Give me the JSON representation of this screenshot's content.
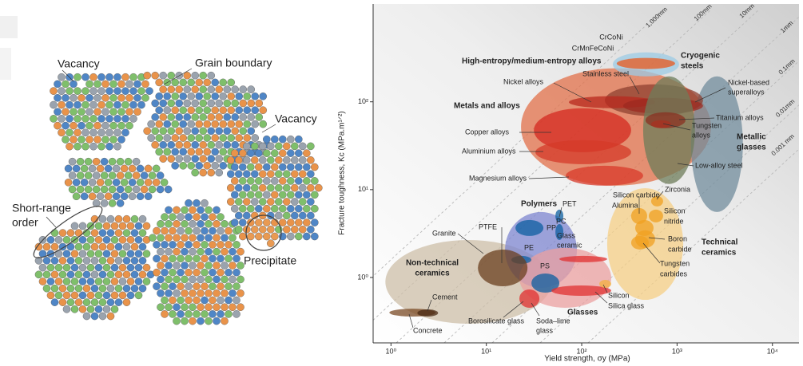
{
  "diagram": {
    "labels": {
      "vacancy_top": "Vacancy",
      "grain_boundary": "Grain boundary",
      "vacancy_right": "Vacancy",
      "short_range_order": [
        "Short-range",
        "order"
      ],
      "precipitate": "Precipitate"
    }
  },
  "chart_data": {
    "type": "ashby",
    "x_label": "Yield strength, σy (MPa)",
    "y_label": "Fracture toughness, Kc (MPa.m¹ᐟ²)",
    "xscale": "log",
    "yscale": "log",
    "xlim": [
      0.65,
      19000
    ],
    "ylim": [
      0.18,
      1300
    ],
    "xticks": [
      {
        "value": 1,
        "label": "10⁰"
      },
      {
        "value": 10,
        "label": "10¹"
      },
      {
        "value": 100,
        "label": "10²"
      },
      {
        "value": 1000,
        "label": "10³"
      },
      {
        "value": 10000,
        "label": "10⁴"
      }
    ],
    "yticks": [
      {
        "value": 1,
        "label": "10⁰"
      },
      {
        "value": 10,
        "label": "10¹"
      },
      {
        "value": 100,
        "label": "10²"
      }
    ],
    "guide_lines": [
      "1,000mm",
      "100mm",
      "10mm",
      "1mm",
      "0.1mm",
      "0.01mm",
      "0.001 mm"
    ],
    "regions": [
      {
        "name": [
          "Non-technical",
          "ceramics"
        ],
        "x": [
          0.874,
          48.1
        ],
        "y": [
          0.297,
          2.67
        ],
        "color": "#cdbfa8"
      },
      {
        "name": [
          "Technical",
          "ceramics"
        ],
        "x": [
          185,
          1160
        ],
        "y": [
          0.556,
          10.4
        ],
        "color": "#f6cf86"
      },
      {
        "name": "Polymers",
        "x": [
          15.7,
          89.1
        ],
        "y": [
          0.762,
          5.56
        ],
        "color": "#7d86d0"
      },
      {
        "name": "Glasses",
        "x": [
          22.2,
          204
        ],
        "y": [
          0.452,
          2.17
        ],
        "color": "#eba0a0"
      },
      {
        "name": "Metals and alloys",
        "x": [
          23.1,
          2270
        ],
        "y": [
          11.1,
          241
        ],
        "color": "#e2704a"
      },
      {
        "name": [
          "Metallic",
          "glasses"
        ],
        "x": [
          1400,
          4900
        ],
        "y": [
          5.56,
          195
        ],
        "color": "#728c9c"
      },
      {
        "name": [
          "Cryogenic",
          "steels"
        ],
        "x": [
          212,
          1050
        ],
        "y": [
          195,
          366
        ],
        "color": "#9ccbe4"
      },
      {
        "name": "High-entropy/medium-entropy alloys",
        "x": [
          233,
          953
        ],
        "y": [
          236,
          316
        ],
        "color": "#e8581e"
      },
      {
        "name": "Stainless steel",
        "x": [
          175,
          1870
        ],
        "y": [
          68.6,
          158
        ],
        "color": "#8f4030"
      },
      {
        "name": "Nickel alloys",
        "x": [
          73.5,
          589
        ],
        "y": [
          84.6,
          116
        ],
        "color": "#b8281e"
      },
      {
        "name": [
          "Nickel-based",
          "superalloys"
        ],
        "x": [
          272,
          1870
        ],
        "y": [
          73.1,
          111
        ],
        "color": "#9c2a20"
      },
      {
        "name": "Copper alloys",
        "x": [
          31.5,
          330
        ],
        "y": [
          26.7,
          84.6
        ],
        "color": "#d42a20"
      },
      {
        "name": "Aluminium alloys",
        "x": [
          32.7,
          330
        ],
        "y": [
          19.5,
          36.6
        ],
        "color": "#d43a28"
      },
      {
        "name": "Magnesium alloys",
        "x": [
          68,
          441
        ],
        "y": [
          11.1,
          18.7
        ],
        "color": "#d83a2a"
      },
      {
        "name": "Low-alloy steel",
        "x": [
          441,
          1540
        ],
        "y": [
          11.6,
          195
        ],
        "color": "#6e7c5a"
      },
      {
        "name": "Titanium alloys",
        "x": [
          467,
          1224
        ],
        "y": [
          50.1,
          76.2
        ],
        "color": "#8a3020"
      },
      {
        "name": [
          "Tungsten",
          "alloys"
        ],
        "x": [
          535,
          865
        ],
        "y": [
          50.1,
          61.8
        ],
        "color": "#a83020"
      },
      {
        "name": "PP",
        "x": [
          20.2,
          39.7
        ],
        "y": [
          2.97,
          4.51
        ],
        "color": "#0e5fa0"
      },
      {
        "name": "PE",
        "x": [
          18.3,
          29.7
        ],
        "y": [
          1.43,
          1.76
        ],
        "color": "#0e5fa0"
      },
      {
        "name": "PET",
        "x": [
          53,
          64.2
        ],
        "y": [
          4.24,
          5.93
        ],
        "color": "#0e5fa0"
      },
      {
        "name": "PC",
        "x": [
          53,
          64.2
        ],
        "y": [
          2.67,
          4.06
        ],
        "color": "#0e5fa0"
      },
      {
        "name": "PS",
        "x": [
          29.7,
          58.3
        ],
        "y": [
          0.672,
          1.11
        ],
        "color": "#0e5fa0"
      },
      {
        "name": "Granite",
        "x": [
          8.17,
          27
        ],
        "y": [
          0.794,
          2.08
        ],
        "color": "#6b3f1f"
      },
      {
        "name": "Concrete",
        "x": [
          0.962,
          2.94
        ],
        "y": [
          0.359,
          0.441
        ],
        "color": "#7a4a24"
      },
      {
        "name": "Cement",
        "x": [
          1.89,
          3.12
        ],
        "y": [
          0.359,
          0.433
        ],
        "color": "#4a2a14"
      },
      {
        "name": [
          "Glass",
          "ceramic"
        ],
        "x": [
          58.3,
          185
        ],
        "y": [
          1.49,
          1.76
        ],
        "color": "#e03030"
      },
      {
        "name": "Silica glass",
        "x": [
          48.1,
          204
        ],
        "y": [
          0.618,
          0.811
        ],
        "color": "#e03030"
      },
      {
        "name": [
          "Soda–lime",
          "glass"
        ],
        "x": [
          22.2,
          36
        ],
        "y": [
          0.452,
          0.731
        ],
        "color": "#e03030"
      },
      {
        "name": "Silicon",
        "x": [
          153,
          204
        ],
        "y": [
          0.762,
          0.939
        ],
        "color": "#f3b040"
      },
      {
        "name": "Zirconia",
        "x": [
          535,
          714
        ],
        "y": [
          6.44,
          8.46
        ],
        "color": "#f0a020"
      },
      {
        "name": "Silicon carbide",
        "x": [
          330,
          486
        ],
        "y": [
          4.06,
          6.18
        ],
        "color": "#f0a020"
      },
      {
        "name": "Alumina",
        "x": [
          364,
          567
        ],
        "y": [
          2.97,
          4.51
        ],
        "color": "#f0a020"
      },
      {
        "name": [
          "Silicon",
          "nitride"
        ],
        "x": [
          505,
          714
        ],
        "y": [
          4.24,
          5.93
        ],
        "color": "#f0a020"
      },
      {
        "name": [
          "Boron",
          "carbide"
        ],
        "x": [
          364,
          589
        ],
        "y": [
          2.17,
          3.44
        ],
        "color": "#f0a020"
      },
      {
        "name": [
          "Tungsten",
          "carbides"
        ],
        "x": [
          330,
          505
        ],
        "y": [
          2.08,
          2.97
        ],
        "color": "#f0a020"
      }
    ],
    "annotations": [
      "CrCoNi",
      "CrMnFeCoNi",
      "PTFE",
      "Borosilicate glass"
    ]
  }
}
